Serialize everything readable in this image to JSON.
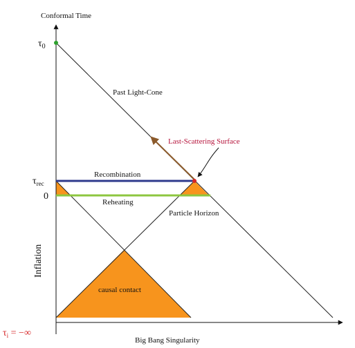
{
  "axes": {
    "y_title": "Conformal Time",
    "x_title": "Big Bang Singularity",
    "tick_tau0": "τ",
    "tick_tau0_sub": "0",
    "tick_trec": "τ",
    "tick_trec_sub": "rec",
    "tick_zero": "0",
    "tick_ti": "τ",
    "tick_ti_sub": "i",
    "tick_ti_rest": " = −∞",
    "inflation": "Inflation"
  },
  "labels": {
    "past_light_cone": "Past Light-Cone",
    "last_scattering": "Last-Scattering Surface",
    "recombination": "Recombination",
    "reheating": "Reheating",
    "particle_horizon": "Particle Horizon",
    "causal_contact": "causal contact"
  },
  "colors": {
    "orange": "#f7941d",
    "recombination": "#2e3a8c",
    "reheating": "#8dc63f",
    "arrow": "#8b5a2b",
    "observer": "#2ca02c",
    "event": "#d62728",
    "accent_text": "#b5123a"
  }
}
